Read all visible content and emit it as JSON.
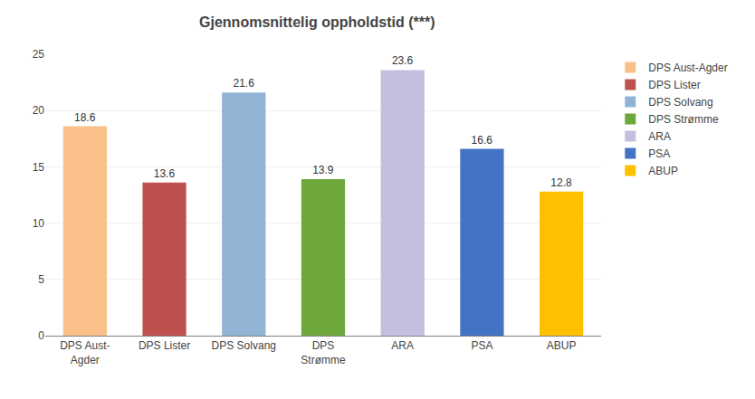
{
  "chart_data": {
    "type": "bar",
    "title": "Gjennomsnittelig oppholdstid (***)",
    "categories": [
      "DPS Aust-\nAgder",
      "DPS Lister",
      "DPS Solvang",
      "DPS\nStrømme",
      "ARA",
      "PSA",
      "ABUP"
    ],
    "series": [
      {
        "name": "DPS Aust-Agder",
        "color": "#F9C08A",
        "values": [
          18.6,
          null,
          null,
          null,
          null,
          null,
          null
        ]
      },
      {
        "name": "DPS Lister",
        "color": "#BE514E",
        "values": [
          null,
          13.6,
          null,
          null,
          null,
          null,
          null
        ]
      },
      {
        "name": "DPS Solvang",
        "color": "#91B4D5",
        "values": [
          null,
          null,
          21.6,
          null,
          null,
          null,
          null
        ]
      },
      {
        "name": "DPS Strømme",
        "color": "#6EA83C",
        "values": [
          null,
          null,
          null,
          13.9,
          null,
          null,
          null
        ]
      },
      {
        "name": "ARA",
        "color": "#C5BFDF",
        "values": [
          null,
          null,
          null,
          null,
          23.6,
          null,
          null
        ]
      },
      {
        "name": "PSA",
        "color": "#4472C4",
        "values": [
          null,
          null,
          null,
          null,
          null,
          16.6,
          null
        ]
      },
      {
        "name": "ABUP",
        "color": "#FFC000",
        "values": [
          null,
          null,
          null,
          null,
          null,
          null,
          12.8
        ]
      }
    ],
    "ylim": [
      0,
      25
    ],
    "yticks": [
      0,
      5,
      10,
      15,
      20,
      25
    ],
    "grid": true,
    "data_labels": true,
    "legend": "upper right"
  }
}
